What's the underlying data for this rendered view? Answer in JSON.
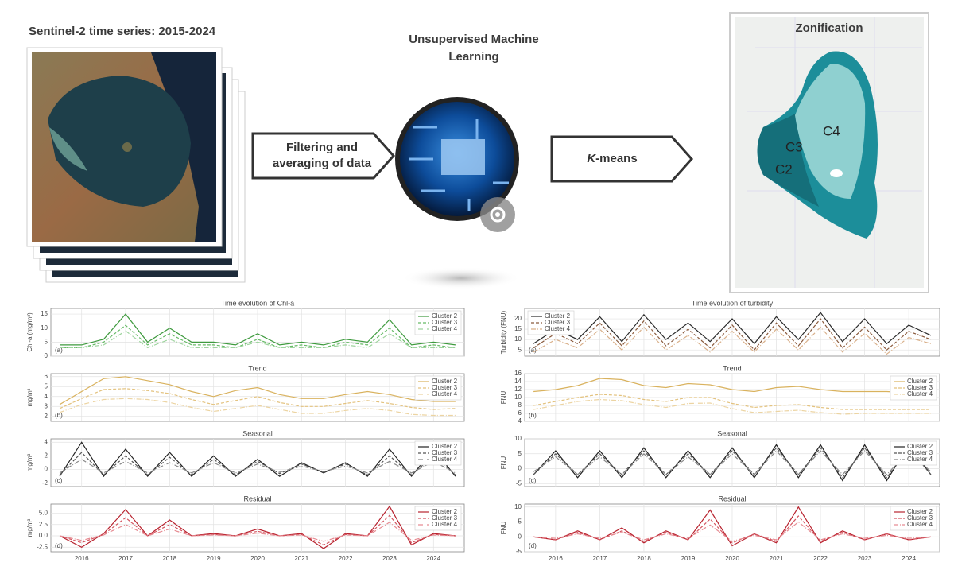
{
  "header": {
    "left_title": "Sentinel-2 time series: 2015-2024",
    "center_title_line1": "Unsupervised Machine",
    "center_title_line2": "Learning",
    "right_title": "Zonification"
  },
  "steps": {
    "filter_line1": "Filtering and",
    "filter_line2": "averaging of data",
    "kmeans_k": "K",
    "kmeans_rest": "-means"
  },
  "map_labels": {
    "c3": "C3",
    "c2": "C2",
    "c4": "C4"
  },
  "charts": {
    "x": [
      2015.5,
      2016,
      2016.5,
      2017,
      2017.5,
      2018,
      2018.5,
      2019,
      2019.5,
      2020,
      2020.5,
      2021,
      2021.5,
      2022,
      2022.5,
      2023,
      2023.5,
      2024,
      2024.5
    ],
    "xlim": [
      2015.3,
      2024.7
    ],
    "xticks": [
      2016,
      2017,
      2018,
      2019,
      2020,
      2021,
      2022,
      2023,
      2024
    ],
    "panels": [
      {
        "type": "line",
        "title": "Time evolution of Chl-a",
        "ylabel": "Chl-a (mg/m³)",
        "letter": "(a)",
        "legend": "upper right",
        "ylim": [
          0,
          17
        ],
        "yticks": [
          0,
          5,
          10,
          15
        ],
        "series": [
          {
            "name": "Cluster 2",
            "color": "#3e9a3e",
            "values": [
              4,
              4,
              6,
              15,
              5,
              10,
              5,
              5,
              4,
              8,
              4,
              5,
              4,
              6,
              5,
              13,
              4,
              5,
              4
            ]
          },
          {
            "name": "Cluster 3",
            "color": "#66bb66",
            "values": [
              3,
              3,
              5,
              11,
              4,
              8,
              4,
              4,
              3,
              6,
              3,
              4,
              3,
              5,
              4,
              10,
              3,
              4,
              3
            ]
          },
          {
            "name": "Cluster 4",
            "color": "#9fd49f",
            "values": [
              3,
              3,
              4,
              9,
              3,
              6,
              3,
              3,
              3,
              5,
              3,
              3,
              3,
              4,
              3,
              8,
              3,
              3,
              3
            ]
          }
        ]
      },
      {
        "type": "line",
        "title": "Trend",
        "ylabel": "mg/m³",
        "letter": "(b)",
        "legend": "upper right",
        "ylim": [
          1.5,
          6.3
        ],
        "yticks": [
          2,
          3,
          4,
          5,
          6
        ],
        "series": [
          {
            "name": "Cluster 2",
            "color": "#d9b25e",
            "values": [
              3.2,
              4.5,
              5.8,
              6,
              5.6,
              5.2,
              4.5,
              4,
              4.6,
              4.9,
              4.2,
              3.8,
              3.8,
              4.2,
              4.5,
              4.2,
              3.7,
              3.5,
              3.5
            ]
          },
          {
            "name": "Cluster 3",
            "color": "#e3c27e",
            "values": [
              2.8,
              3.8,
              4.7,
              4.8,
              4.6,
              4.3,
              3.7,
              3.2,
              3.6,
              4,
              3.4,
              3,
              3,
              3.3,
              3.6,
              3.3,
              2.9,
              2.7,
              2.8
            ]
          },
          {
            "name": "Cluster 4",
            "color": "#ecd4a2",
            "values": [
              2.4,
              3.2,
              3.7,
              3.8,
              3.7,
              3.4,
              2.9,
              2.5,
              2.8,
              3.1,
              2.7,
              2.3,
              2.3,
              2.6,
              2.8,
              2.6,
              2.2,
              2.1,
              2.1
            ]
          }
        ]
      },
      {
        "type": "line",
        "title": "Seasonal",
        "ylabel": "mg/m³",
        "letter": "(c)",
        "legend": "upper right",
        "ylim": [
          -2.5,
          4.5
        ],
        "yticks": [
          -2,
          0,
          2,
          4
        ],
        "series": [
          {
            "name": "Cluster 2",
            "color": "#222222",
            "values": [
              -1,
              4,
              -1,
              3,
              -1,
              2.5,
              -1,
              2,
              -1,
              1.5,
              -1,
              1,
              -0.5,
              1,
              -1,
              3,
              -1,
              3,
              -1
            ]
          },
          {
            "name": "Cluster 3",
            "color": "#555555",
            "values": [
              -0.8,
              2.5,
              -0.8,
              2,
              -0.8,
              1.8,
              -0.8,
              1.5,
              -0.8,
              1.2,
              -0.6,
              0.8,
              -0.4,
              0.8,
              -0.8,
              2,
              -0.8,
              2,
              -0.8
            ]
          },
          {
            "name": "Cluster 4",
            "color": "#888888",
            "values": [
              -0.5,
              1.5,
              -0.5,
              1.2,
              -0.5,
              1,
              -0.5,
              1,
              -0.5,
              0.8,
              -0.4,
              0.5,
              -0.3,
              0.5,
              -0.5,
              1.2,
              -0.5,
              1.2,
              -0.5
            ]
          }
        ]
      },
      {
        "type": "line",
        "title": "Residual",
        "ylabel": "mg/m³",
        "letter": "(d)",
        "legend": "upper right",
        "ylim": [
          -3.5,
          7
        ],
        "yticks": [
          -2.5,
          {
            "value": 0,
            "label": "0.0"
          },
          {
            "value": 2.5,
            "label": "2.5"
          },
          {
            "value": 5,
            "label": "5.0"
          }
        ],
        "series": [
          {
            "name": "Cluster 2",
            "color": "#b8232f",
            "values": [
              0,
              -2.5,
              0.5,
              5.8,
              0,
              3.5,
              0,
              0.5,
              0,
              1.5,
              0,
              0.5,
              -2.8,
              0.5,
              0,
              6.5,
              -2,
              0.5,
              0
            ]
          },
          {
            "name": "Cluster 3",
            "color": "#d45560",
            "values": [
              0,
              -1.5,
              0.3,
              4,
              0,
              2.5,
              0,
              0.3,
              0,
              1,
              0,
              0.3,
              -2,
              0.3,
              0,
              4.5,
              -1.5,
              0.3,
              0
            ]
          },
          {
            "name": "Cluster 4",
            "color": "#e68c93",
            "values": [
              0,
              -1,
              0.2,
              2.5,
              0,
              1.5,
              0,
              0.2,
              0,
              0.6,
              0,
              0.2,
              -1.2,
              0.2,
              0,
              3,
              -1,
              0.2,
              0
            ]
          }
        ]
      },
      {
        "type": "line",
        "title": "Time evolution of turbidity",
        "ylabel": "Turbidity (FNU)",
        "letter": "(a)",
        "legend": "upper left",
        "ylim": [
          2,
          25
        ],
        "yticks": [
          5,
          10,
          15,
          20
        ],
        "series": [
          {
            "name": "Cluster 2",
            "color": "#2a2a2a",
            "values": [
              8,
              15,
              10,
              21,
              9,
              22,
              10,
              18,
              9,
              20,
              8,
              21,
              10,
              23,
              9,
              20,
              8,
              17,
              12
            ]
          },
          {
            "name": "Cluster 3",
            "color": "#8a5a3c",
            "values": [
              6,
              13,
              8,
              18,
              7,
              19,
              7,
              15,
              6,
              17,
              5,
              18,
              7,
              20,
              6,
              16,
              5,
              14,
              10
            ]
          },
          {
            "name": "Cluster 4",
            "color": "#d9b08a",
            "values": [
              4,
              10,
              6,
              15,
              5,
              16,
              5,
              12,
              4,
              14,
              4,
              15,
              5,
              16,
              4,
              13,
              3,
              11,
              8
            ]
          }
        ]
      },
      {
        "type": "line",
        "title": "Trend",
        "ylabel": "FNU",
        "letter": "(b)",
        "legend": "upper right",
        "ylim": [
          4,
          16
        ],
        "yticks": [
          4,
          6,
          8,
          10,
          12,
          14,
          16
        ],
        "series": [
          {
            "name": "Cluster 2",
            "color": "#d9b25e",
            "values": [
              11.5,
              12,
              13,
              14.8,
              14.5,
              13,
              12.5,
              13.5,
              13.2,
              12,
              11.5,
              12.5,
              12.8,
              12,
              11.5,
              11.5,
              11.5,
              11.2,
              11
            ]
          },
          {
            "name": "Cluster 3",
            "color": "#e3c27e",
            "values": [
              8,
              9,
              10,
              10.8,
              10.5,
              9.5,
              9,
              10,
              10,
              8.5,
              7.5,
              8,
              8.2,
              7.5,
              7,
              7,
              7,
              7,
              7
            ]
          },
          {
            "name": "Cluster 4",
            "color": "#ecd4a2",
            "values": [
              7,
              8,
              9,
              9.5,
              9.2,
              8.2,
              7.5,
              8.5,
              8.6,
              7.2,
              6.2,
              6.5,
              6.8,
              6.2,
              5.8,
              6,
              6,
              6,
              6
            ]
          }
        ]
      },
      {
        "type": "line",
        "title": "Seasonal",
        "ylabel": "FNU",
        "letter": "(c)",
        "legend": "upper right",
        "ylim": [
          -6,
          10
        ],
        "yticks": [
          -5,
          0,
          5,
          10
        ],
        "series": [
          {
            "name": "Cluster 2",
            "color": "#222222",
            "values": [
              -2,
              6,
              -3,
              6,
              -3,
              7,
              -3,
              6,
              -3,
              7,
              -3,
              8,
              -3,
              8,
              -4,
              8,
              -4,
              8,
              -2
            ]
          },
          {
            "name": "Cluster 3",
            "color": "#555555",
            "values": [
              -2,
              5,
              -2,
              5,
              -2,
              6,
              -2,
              5,
              -2,
              6,
              -2,
              7,
              -2,
              7,
              -3,
              7,
              -3,
              7,
              -2
            ]
          },
          {
            "name": "Cluster 4",
            "color": "#888888",
            "values": [
              -1,
              4,
              -2,
              4,
              -2,
              5,
              -2,
              4,
              -2,
              5,
              -2,
              6,
              -2,
              6,
              -2,
              6,
              -2,
              6,
              -1
            ]
          }
        ]
      },
      {
        "type": "line",
        "title": "Residual",
        "ylabel": "FNU",
        "letter": "(d)",
        "legend": "upper right",
        "ylim": [
          -5,
          11
        ],
        "yticks": [
          -5,
          0,
          5,
          10
        ],
        "series": [
          {
            "name": "Cluster 2",
            "color": "#b8232f",
            "values": [
              0,
              -1,
              2,
              -1,
              3,
              -2,
              2,
              -1,
              9,
              -3,
              1,
              -2,
              10,
              -2,
              2,
              -1,
              1,
              -1,
              0
            ]
          },
          {
            "name": "Cluster 3",
            "color": "#d45560",
            "values": [
              0,
              -1,
              1.5,
              -1,
              2,
              -1.5,
              1.5,
              -1,
              6,
              -2,
              1,
              -1.5,
              7,
              -1.5,
              1.5,
              -1,
              1,
              -1,
              0
            ]
          },
          {
            "name": "Cluster 4",
            "color": "#e68c93",
            "values": [
              0,
              -0.5,
              1,
              -0.5,
              1.5,
              -1,
              1,
              -0.5,
              4,
              -1.5,
              0.5,
              -1,
              5,
              -1,
              1,
              -0.5,
              0.5,
              -0.5,
              0
            ]
          }
        ]
      }
    ]
  }
}
